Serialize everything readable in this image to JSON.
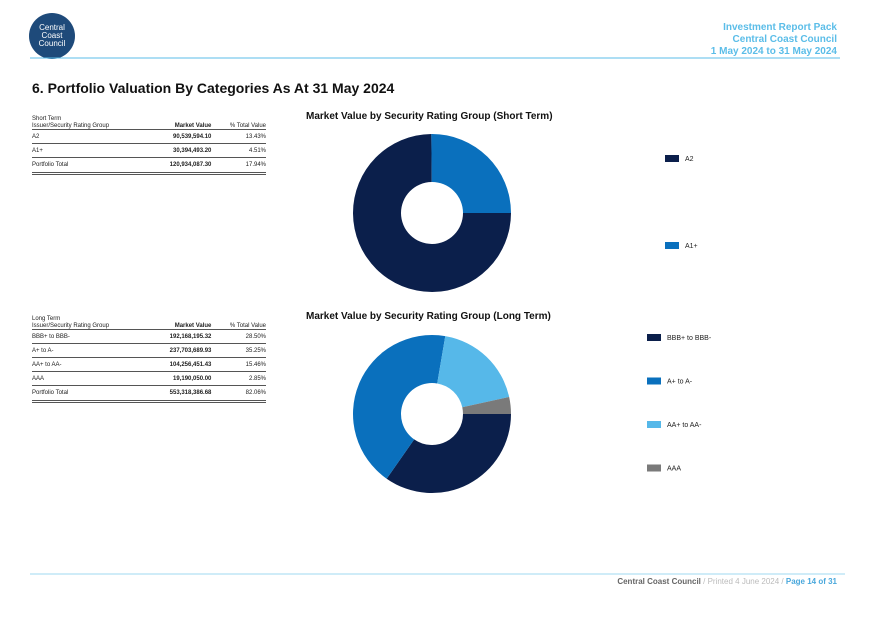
{
  "header": {
    "logo": [
      "Central",
      "Coast",
      "Council"
    ],
    "lines": [
      "Investment Report Pack",
      "Central Coast Council",
      "1 May 2024 to 31 May 2024"
    ]
  },
  "section_title": "6. Portfolio Valuation By Categories As At 31 May 2024",
  "tables": [
    {
      "heading": "Short Term",
      "columns": [
        "Issuer/Security Rating Group",
        "Market Value",
        "% Total Value"
      ],
      "rows": [
        [
          "A2",
          "90,539,594.10",
          "13.43%"
        ],
        [
          "A1+",
          "30,394,493.20",
          "4.51%"
        ]
      ],
      "total": [
        "Portfolio Total",
        "120,934,087.30",
        "17.94%"
      ]
    },
    {
      "heading": "Long Term",
      "columns": [
        "Issuer/Security Rating Group",
        "Market Value",
        "% Total Value"
      ],
      "rows": [
        [
          "BBB+ to BBB-",
          "192,168,195.32",
          "28.50%"
        ],
        [
          "A+ to A-",
          "237,703,689.93",
          "35.25%"
        ],
        [
          "AA+ to AA-",
          "104,256,451.43",
          "15.46%"
        ],
        [
          "AAA",
          "19,190,050.00",
          "2.85%"
        ]
      ],
      "total": [
        "Portfolio Total",
        "553,318,386.68",
        "82.06%"
      ]
    }
  ],
  "charts": [
    {
      "type": "donut",
      "title": "Market Value by Security Rating Group (Short Term)",
      "categories": [
        "A2",
        "A1+"
      ],
      "values": [
        90539594.1,
        30394493.2
      ],
      "colors": [
        "#0b1f4b",
        "#0a70bd"
      ]
    },
    {
      "type": "donut",
      "title": "Market Value by Security Rating Group (Long Term)",
      "categories": [
        "BBB+ to BBB-",
        "A+ to A-",
        "AA+ to AA-",
        "AAA"
      ],
      "values": [
        192168195.32,
        237703689.93,
        104256451.43,
        19190050.0
      ],
      "colors": [
        "#0b1f4b",
        "#0a70bd",
        "#56b8e9",
        "#7a7a7a"
      ]
    }
  ],
  "footer": {
    "parts": [
      "Central Coast Council",
      " / Printed 4 June 2024 / ",
      "Page 14 of 31"
    ]
  }
}
